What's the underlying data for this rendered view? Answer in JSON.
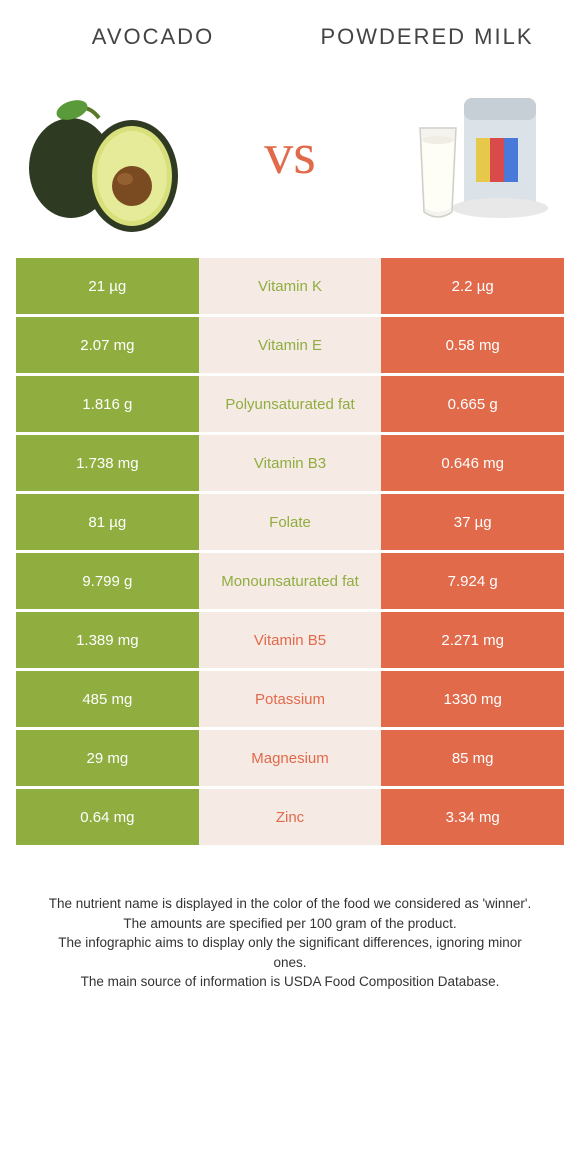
{
  "colors": {
    "left": "#8fae3f",
    "right": "#e06a4a",
    "mid_bg": "#f6eae5",
    "mid_text_left": "#8fae3f",
    "mid_text_right": "#e06a4a",
    "footer_text": "#333333"
  },
  "header": {
    "left_title": "Avocado",
    "right_title": "Powdered Milk",
    "vs": "vs"
  },
  "rows": [
    {
      "left": "21 µg",
      "mid": "Vitamin K",
      "right": "2.2 µg",
      "winner": "left"
    },
    {
      "left": "2.07 mg",
      "mid": "Vitamin E",
      "right": "0.58 mg",
      "winner": "left"
    },
    {
      "left": "1.816 g",
      "mid": "Polyunsaturated fat",
      "right": "0.665 g",
      "winner": "left"
    },
    {
      "left": "1.738 mg",
      "mid": "Vitamin B3",
      "right": "0.646 mg",
      "winner": "left"
    },
    {
      "left": "81 µg",
      "mid": "Folate",
      "right": "37 µg",
      "winner": "left"
    },
    {
      "left": "9.799 g",
      "mid": "Monounsaturated fat",
      "right": "7.924 g",
      "winner": "left"
    },
    {
      "left": "1.389 mg",
      "mid": "Vitamin B5",
      "right": "2.271 mg",
      "winner": "right"
    },
    {
      "left": "485 mg",
      "mid": "Potassium",
      "right": "1330 mg",
      "winner": "right"
    },
    {
      "left": "29 mg",
      "mid": "Magnesium",
      "right": "85 mg",
      "winner": "right"
    },
    {
      "left": "0.64 mg",
      "mid": "Zinc",
      "right": "3.34 mg",
      "winner": "right"
    }
  ],
  "footer": {
    "line1": "The nutrient name is displayed in the color of the food we considered as 'winner'.",
    "line2": "The amounts are specified per 100 gram of the product.",
    "line3": "The infographic aims to display only the significant differences, ignoring minor ones.",
    "line4": "The main source of information is USDA Food Composition Database."
  }
}
